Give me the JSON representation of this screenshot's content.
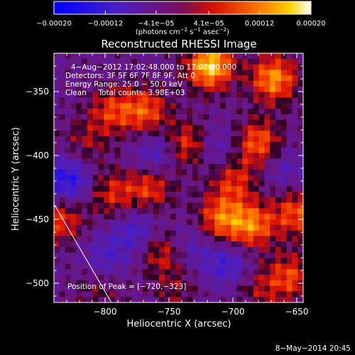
{
  "chart_data": {
    "type": "heatmap",
    "title": "Reconstructed RHESSI Image",
    "xlabel": "Heliocentric X (arcsec)",
    "ylabel": "Heliocentric Y (arcsec)",
    "xlim": [
      -840,
      -645
    ],
    "ylim": [
      -515,
      -320
    ],
    "x_ticks": [
      {
        "value": -800,
        "label": "−800"
      },
      {
        "value": -750,
        "label": "−750"
      },
      {
        "value": -700,
        "label": "−700"
      },
      {
        "value": -650,
        "label": "−650"
      }
    ],
    "y_ticks": [
      {
        "value": -350,
        "label": "−350"
      },
      {
        "value": -400,
        "label": "−400"
      },
      {
        "value": -450,
        "label": "−450"
      },
      {
        "value": -500,
        "label": "−500"
      }
    ],
    "colorbar": {
      "min": -0.0002,
      "max": 0.0002,
      "ticks": [
        {
          "value": -0.0002,
          "label": "−0.00020"
        },
        {
          "value": -0.00012,
          "label": "−0.00012"
        },
        {
          "value": -4.1e-05,
          "label": "−4.1e−05"
        },
        {
          "value": 4.1e-05,
          "label": "4.1e−05"
        },
        {
          "value": 0.00012,
          "label": "0.00012"
        },
        {
          "value": 0.0002,
          "label": "0.00020"
        }
      ],
      "unit_parts": [
        "(photons cm",
        "−2",
        " s",
        "−1",
        " asec",
        "−2",
        ")"
      ]
    },
    "annotations": [
      "4−Aug−2012 17:02:48.000 to 17:07:00.000",
      "Detectors: 3F 5F 6F 7F 8F 9F, Att 0",
      "Energy Range: 25.0 − 50.0 keV",
      "Clean     Total counts: 3.98E+03"
    ],
    "peak_label": "Position of Peak = [−720,−323]",
    "peak_position": [
      -720,
      -323
    ],
    "grid": false,
    "colormap": "blue-purple-red-orange-yellow-white",
    "hotspots": [
      {
        "x": -718,
        "y": -330,
        "v": 0.0002
      },
      {
        "x": -668,
        "y": -340,
        "v": 0.00016
      },
      {
        "x": -680,
        "y": -390,
        "v": 0.00013
      },
      {
        "x": -768,
        "y": -365,
        "v": 0.00012
      },
      {
        "x": -795,
        "y": -365,
        "v": 0.0001
      },
      {
        "x": -735,
        "y": -392,
        "v": 0.00012
      },
      {
        "x": -700,
        "y": -420,
        "v": 0.0001
      },
      {
        "x": -765,
        "y": -425,
        "v": 0.00011
      },
      {
        "x": -795,
        "y": -430,
        "v": 9e-05
      },
      {
        "x": -685,
        "y": -455,
        "v": 0.00014
      },
      {
        "x": -710,
        "y": -450,
        "v": 0.00013
      },
      {
        "x": -650,
        "y": -445,
        "v": 0.00012
      },
      {
        "x": -835,
        "y": -450,
        "v": 0.00011
      },
      {
        "x": -755,
        "y": -475,
        "v": 0.0001
      },
      {
        "x": -655,
        "y": -495,
        "v": 0.00011
      },
      {
        "x": -815,
        "y": -390,
        "v": 6e-05
      },
      {
        "x": -680,
        "y": -505,
        "v": 6e-05
      },
      {
        "x": -745,
        "y": -505,
        "v": 5e-05
      },
      {
        "x": -805,
        "y": -505,
        "v": 5e-05
      }
    ],
    "coldspots": [
      {
        "x": -830,
        "y": -420,
        "v": -0.00012
      },
      {
        "x": -760,
        "y": -400,
        "v": -8e-05
      },
      {
        "x": -775,
        "y": -460,
        "v": -8e-05
      },
      {
        "x": -715,
        "y": -395,
        "v": -7e-05
      },
      {
        "x": -705,
        "y": -485,
        "v": -8e-05
      },
      {
        "x": -800,
        "y": -480,
        "v": -6e-05
      },
      {
        "x": -735,
        "y": -470,
        "v": -6e-05
      },
      {
        "x": -660,
        "y": -410,
        "v": -5e-05
      }
    ],
    "limb_line": [
      [
        -840,
        -438
      ],
      [
        -795,
        -515
      ]
    ]
  },
  "footer": {
    "timestamp": "8−May−2014 20:45"
  }
}
